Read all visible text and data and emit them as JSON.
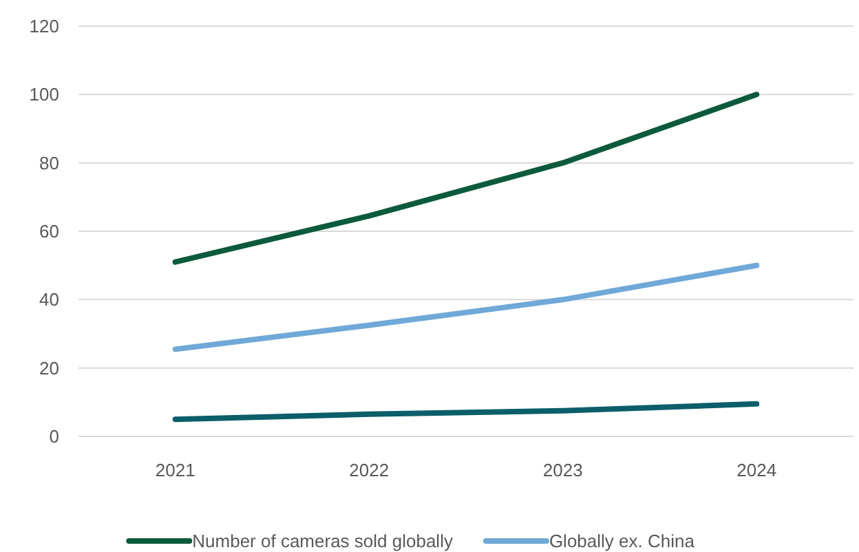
{
  "chart_data": {
    "type": "line",
    "categories": [
      "2021",
      "2022",
      "2023",
      "2024"
    ],
    "series": [
      {
        "name": "Number of cameras sold globally",
        "color": "#0b5a3c",
        "values": [
          51,
          64.5,
          80,
          100
        ]
      },
      {
        "name": "Globally ex. China",
        "color": "#70a8d8",
        "values": [
          25.5,
          32.5,
          40,
          50
        ]
      },
      {
        "color": "#0b5e6a",
        "values": [
          5,
          6.5,
          7.5,
          9.5
        ]
      }
    ],
    "ylim": [
      0,
      120
    ],
    "yticks": [
      0,
      20,
      40,
      60,
      80,
      100,
      120
    ],
    "grid": "y",
    "legend": "bottom",
    "line_style": "solid"
  }
}
